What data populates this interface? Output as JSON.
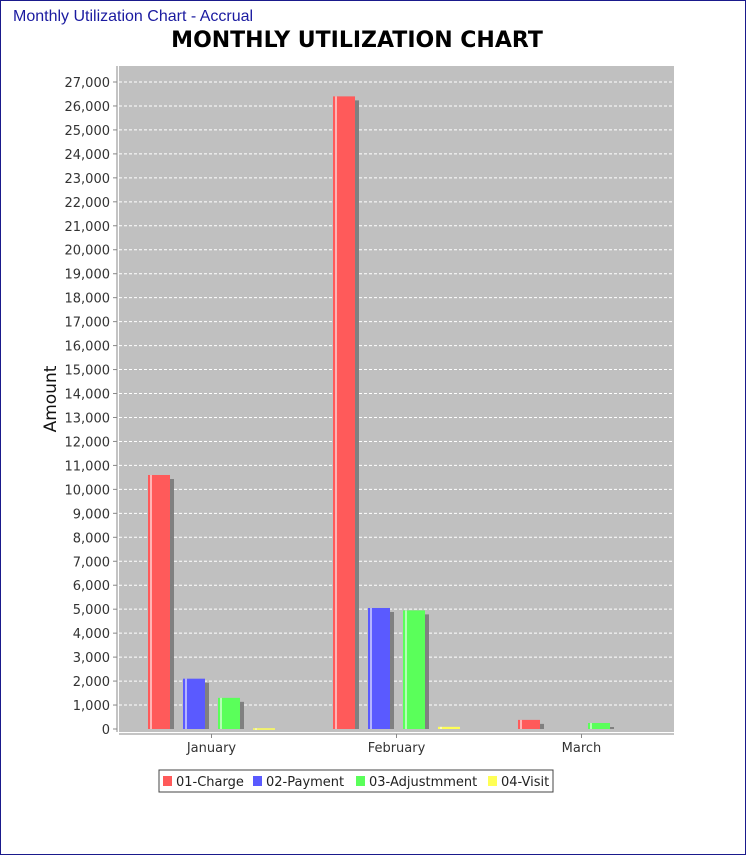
{
  "window": {
    "title": "Monthly Utilization Chart - Accrual"
  },
  "chart_data": {
    "type": "bar",
    "title": "MONTHLY UTILIZATION CHART",
    "xlabel": "",
    "ylabel": "Amount",
    "ylim": [
      0,
      27000
    ],
    "ytick_step": 1000,
    "grid": true,
    "legend_position": "bottom",
    "categories": [
      "January",
      "February",
      "March"
    ],
    "series": [
      {
        "name": "01-Charge",
        "color": "#ff5a5a",
        "values": [
          10600,
          26400,
          380
        ]
      },
      {
        "name": "02-Payment",
        "color": "#5a5aff",
        "values": [
          2100,
          5050,
          0
        ]
      },
      {
        "name": "03-Adjustmment",
        "color": "#5aff5a",
        "values": [
          1300,
          4950,
          250
        ]
      },
      {
        "name": "04-Visit",
        "color": "#ffff55",
        "values": [
          30,
          90,
          0
        ]
      }
    ]
  }
}
